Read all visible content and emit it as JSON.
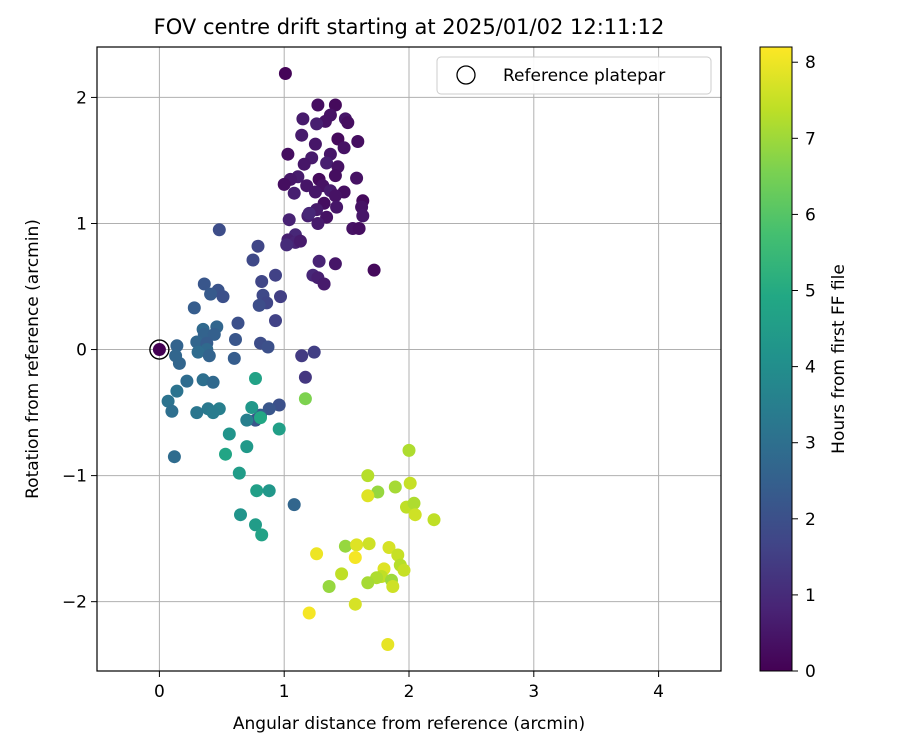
{
  "chart_data": {
    "type": "scatter",
    "title": "FOV centre drift starting at 2025/01/02 12:11:12",
    "xlabel": "Angular distance from reference (arcmin)",
    "ylabel": "Rotation from reference (arcmin)",
    "xlim": [
      -0.5,
      4.5
    ],
    "ylim": [
      -2.55,
      2.4
    ],
    "xticks": [
      0,
      1,
      2,
      3,
      4
    ],
    "yticks": [
      -2,
      -1,
      0,
      1,
      2
    ],
    "grid": true,
    "legend": {
      "placement": "top-right",
      "entries": [
        "Reference platepar"
      ]
    },
    "reference_point": {
      "x": 0,
      "y": 0
    },
    "colorbar": {
      "label": "Hours from first FF file",
      "colormap": "viridis",
      "range": [
        0,
        8.2
      ],
      "ticks": [
        0,
        1,
        2,
        3,
        4,
        5,
        6,
        7,
        8
      ]
    },
    "series": [
      {
        "colored_by": "Hours from first FF file",
        "points": [
          [
            1.01,
            2.19,
            0.1
          ],
          [
            1.27,
            1.94,
            0.3
          ],
          [
            1.41,
            1.94,
            0.2
          ],
          [
            1.37,
            1.86,
            0.4
          ],
          [
            1.49,
            1.83,
            0.5
          ],
          [
            1.15,
            1.83,
            0.6
          ],
          [
            1.33,
            1.81,
            0.4
          ],
          [
            1.51,
            1.8,
            0.3
          ],
          [
            1.26,
            1.79,
            0.7
          ],
          [
            1.14,
            1.7,
            0.6
          ],
          [
            1.43,
            1.67,
            0.2
          ],
          [
            1.59,
            1.65,
            0.3
          ],
          [
            1.25,
            1.63,
            0.5
          ],
          [
            1.48,
            1.6,
            0.4
          ],
          [
            1.37,
            1.55,
            0.5
          ],
          [
            1.03,
            1.55,
            0.3
          ],
          [
            1.22,
            1.52,
            0.6
          ],
          [
            1.34,
            1.48,
            0.7
          ],
          [
            1.16,
            1.47,
            0.5
          ],
          [
            1.43,
            1.45,
            0.4
          ],
          [
            1.41,
            1.38,
            0.3
          ],
          [
            1.11,
            1.37,
            0.6
          ],
          [
            1.05,
            1.35,
            0.5
          ],
          [
            1.58,
            1.36,
            0.4
          ],
          [
            1.28,
            1.35,
            0.2
          ],
          [
            1.0,
            1.31,
            0.3
          ],
          [
            1.18,
            1.3,
            0.5
          ],
          [
            1.31,
            1.3,
            0.4
          ],
          [
            1.48,
            1.25,
            0.3
          ],
          [
            1.37,
            1.26,
            0.6
          ],
          [
            1.08,
            1.24,
            0.7
          ],
          [
            1.25,
            1.25,
            0.5
          ],
          [
            1.41,
            1.22,
            0.4
          ],
          [
            1.63,
            1.18,
            0.2
          ],
          [
            1.32,
            1.16,
            0.3
          ],
          [
            1.42,
            1.13,
            0.5
          ],
          [
            1.62,
            1.13,
            0.4
          ],
          [
            1.26,
            1.11,
            0.6
          ],
          [
            1.19,
            1.06,
            0.7
          ],
          [
            1.63,
            1.06,
            0.5
          ],
          [
            1.34,
            1.05,
            0.4
          ],
          [
            1.2,
            1.08,
            0.9
          ],
          [
            1.04,
            1.03,
            0.8
          ],
          [
            1.27,
            1.0,
            0.6
          ],
          [
            1.55,
            0.96,
            0.4
          ],
          [
            1.6,
            0.96,
            0.3
          ],
          [
            1.09,
            0.91,
            0.9
          ],
          [
            1.03,
            0.87,
            0.7
          ],
          [
            1.09,
            0.85,
            0.8
          ],
          [
            1.13,
            0.86,
            0.6
          ],
          [
            1.02,
            0.83,
            1.0
          ],
          [
            1.28,
            0.7,
            0.8
          ],
          [
            1.41,
            0.68,
            0.5
          ],
          [
            1.72,
            0.63,
            0.2
          ],
          [
            1.23,
            0.59,
            0.9
          ],
          [
            1.27,
            0.57,
            0.7
          ],
          [
            1.32,
            0.52,
            0.6
          ],
          [
            0.48,
            0.95,
            1.9
          ],
          [
            0.79,
            0.82,
            1.7
          ],
          [
            0.75,
            0.71,
            1.8
          ],
          [
            0.93,
            0.59,
            1.6
          ],
          [
            0.82,
            0.54,
            1.7
          ],
          [
            0.36,
            0.52,
            2.2
          ],
          [
            0.47,
            0.47,
            2.1
          ],
          [
            0.41,
            0.44,
            2.3
          ],
          [
            0.51,
            0.42,
            2.0
          ],
          [
            0.97,
            0.42,
            1.5
          ],
          [
            0.83,
            0.43,
            1.8
          ],
          [
            0.86,
            0.37,
            1.7
          ],
          [
            0.8,
            0.35,
            1.9
          ],
          [
            0.28,
            0.33,
            2.4
          ],
          [
            0.93,
            0.23,
            1.6
          ],
          [
            0.63,
            0.21,
            2.0
          ],
          [
            0.46,
            0.18,
            2.7
          ],
          [
            0.35,
            0.16,
            2.8
          ],
          [
            0.36,
            0.12,
            2.6
          ],
          [
            0.44,
            0.12,
            2.5
          ],
          [
            0.61,
            0.08,
            2.2
          ],
          [
            0.3,
            0.06,
            2.7
          ],
          [
            0.38,
            0.05,
            2.4
          ],
          [
            0.81,
            0.05,
            1.9
          ],
          [
            0.87,
            0.02,
            2.0
          ],
          [
            0.14,
            0.03,
            2.6
          ],
          [
            0.38,
            0.0,
            2.8
          ],
          [
            0.31,
            -0.02,
            2.9
          ],
          [
            0.13,
            -0.05,
            2.7
          ],
          [
            0.4,
            -0.05,
            2.6
          ],
          [
            1.14,
            -0.05,
            1.4
          ],
          [
            1.24,
            -0.02,
            1.5
          ],
          [
            0.6,
            -0.07,
            2.4
          ],
          [
            0.16,
            -0.11,
            2.7
          ],
          [
            1.17,
            -0.22,
            1.3
          ],
          [
            0.22,
            -0.25,
            2.9
          ],
          [
            0.35,
            -0.24,
            3.0
          ],
          [
            0.43,
            -0.26,
            2.8
          ],
          [
            0.14,
            -0.33,
            3.1
          ],
          [
            0.07,
            -0.41,
            3.1
          ],
          [
            0.96,
            -0.44,
            2.0
          ],
          [
            0.88,
            -0.47,
            2.2
          ],
          [
            0.39,
            -0.47,
            3.3
          ],
          [
            0.48,
            -0.47,
            3.5
          ],
          [
            0.43,
            -0.5,
            3.4
          ],
          [
            0.3,
            -0.5,
            3.2
          ],
          [
            0.1,
            -0.49,
            3.0
          ],
          [
            0.81,
            -0.52,
            2.4
          ],
          [
            0.77,
            -0.56,
            2.2
          ],
          [
            0.7,
            -0.56,
            3.5
          ],
          [
            0.12,
            -0.85,
            2.9
          ],
          [
            1.08,
            -1.23,
            2.7
          ],
          [
            0.77,
            -0.23,
            4.7
          ],
          [
            0.74,
            -0.46,
            4.3
          ],
          [
            0.81,
            -0.54,
            4.9
          ],
          [
            0.96,
            -0.63,
            4.6
          ],
          [
            0.56,
            -0.67,
            4.2
          ],
          [
            0.7,
            -0.77,
            4.4
          ],
          [
            0.53,
            -0.83,
            4.8
          ],
          [
            0.64,
            -0.98,
            4.5
          ],
          [
            0.78,
            -1.12,
            4.6
          ],
          [
            0.88,
            -1.12,
            4.3
          ],
          [
            0.65,
            -1.31,
            4.2
          ],
          [
            0.77,
            -1.39,
            4.5
          ],
          [
            0.82,
            -1.47,
            4.7
          ],
          [
            1.17,
            -0.39,
            6.6
          ],
          [
            2.0,
            -0.8,
            7.2
          ],
          [
            1.67,
            -1.0,
            7.3
          ],
          [
            2.01,
            -1.06,
            7.5
          ],
          [
            1.89,
            -1.09,
            7.1
          ],
          [
            1.75,
            -1.13,
            6.9
          ],
          [
            1.67,
            -1.16,
            7.8
          ],
          [
            1.98,
            -1.25,
            7.4
          ],
          [
            2.04,
            -1.22,
            7.2
          ],
          [
            2.05,
            -1.31,
            7.6
          ],
          [
            2.2,
            -1.35,
            7.4
          ],
          [
            1.49,
            -1.56,
            6.9
          ],
          [
            1.58,
            -1.55,
            7.8
          ],
          [
            1.68,
            -1.54,
            7.6
          ],
          [
            1.84,
            -1.57,
            7.7
          ],
          [
            1.26,
            -1.62,
            8.0
          ],
          [
            1.57,
            -1.65,
            8.1
          ],
          [
            1.91,
            -1.63,
            7.5
          ],
          [
            1.93,
            -1.71,
            7.3
          ],
          [
            1.96,
            -1.75,
            7.5
          ],
          [
            1.8,
            -1.74,
            7.8
          ],
          [
            1.46,
            -1.78,
            7.4
          ],
          [
            1.78,
            -1.8,
            7.4
          ],
          [
            1.74,
            -1.81,
            7.2
          ],
          [
            1.67,
            -1.85,
            7.1
          ],
          [
            1.86,
            -1.83,
            7.0
          ],
          [
            1.87,
            -1.88,
            7.6
          ],
          [
            1.36,
            -1.88,
            6.9
          ],
          [
            1.57,
            -2.02,
            7.7
          ],
          [
            1.2,
            -2.09,
            8.1
          ],
          [
            1.83,
            -2.34,
            7.9
          ]
        ]
      }
    ]
  }
}
